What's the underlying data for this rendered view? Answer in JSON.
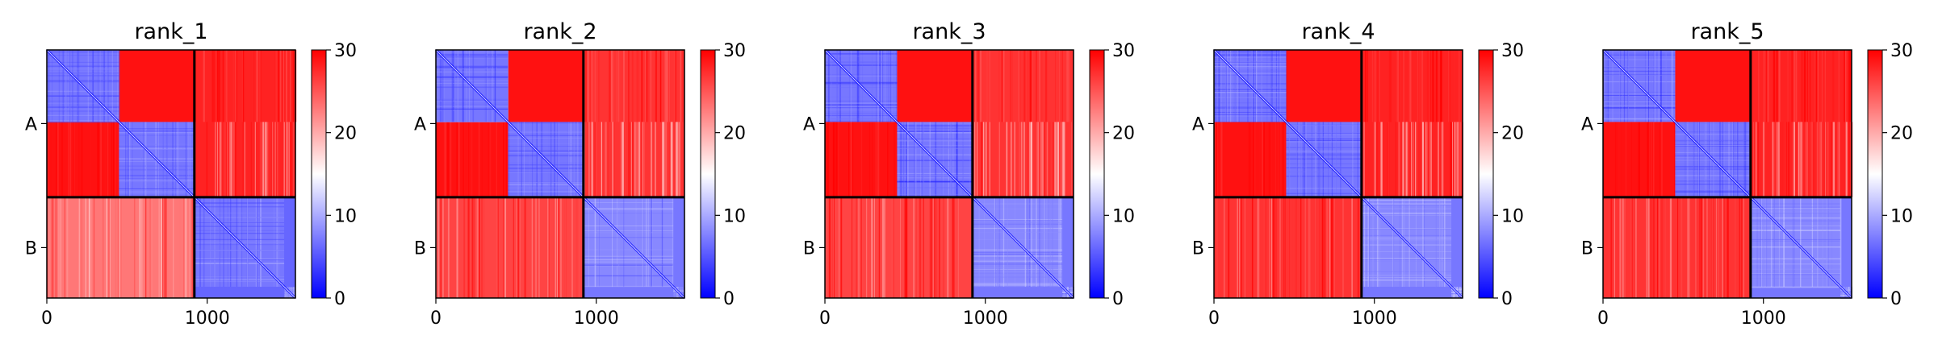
{
  "colormap": {
    "name": "bwr",
    "low_color": "#0000ff",
    "mid_color": "#ffffff",
    "high_color": "#ff0000",
    "vmin": 0,
    "vmax": 30,
    "ticks": [
      0,
      10,
      20,
      30
    ]
  },
  "chart_data": [
    {
      "type": "heatmap",
      "title": "rank_1",
      "xticks": [
        0,
        1000
      ],
      "xlim": [
        0,
        1550
      ],
      "block_boundary": 920,
      "groups": [
        "A",
        "B"
      ],
      "sub_boundaries": [
        450,
        920,
        1480,
        1550
      ],
      "blocks": {
        "AA_diag": 4,
        "AA_off": 29,
        "AB": 28,
        "BA": 23,
        "BB": 6
      }
    },
    {
      "type": "heatmap",
      "title": "rank_2",
      "xticks": [
        0,
        1000
      ],
      "xlim": [
        0,
        1550
      ],
      "block_boundary": 920,
      "groups": [
        "A",
        "B"
      ],
      "sub_boundaries": [
        450,
        920,
        1480,
        1550
      ],
      "blocks": {
        "AA_diag": 4,
        "AA_off": 29,
        "AB": 27,
        "BA": 26,
        "BB": 7
      }
    },
    {
      "type": "heatmap",
      "title": "rank_3",
      "xticks": [
        0,
        1000
      ],
      "xlim": [
        0,
        1550
      ],
      "block_boundary": 920,
      "groups": [
        "A",
        "B"
      ],
      "sub_boundaries": [
        450,
        920,
        1480,
        1550
      ],
      "blocks": {
        "AA_diag": 4,
        "AA_off": 29,
        "AB": 27,
        "BA": 26,
        "BB": 7
      }
    },
    {
      "type": "heatmap",
      "title": "rank_4",
      "xticks": [
        0,
        1000
      ],
      "xlim": [
        0,
        1550
      ],
      "block_boundary": 920,
      "groups": [
        "A",
        "B"
      ],
      "sub_boundaries": [
        450,
        920,
        1480,
        1550
      ],
      "blocks": {
        "AA_diag": 4,
        "AA_off": 29,
        "AB": 28,
        "BA": 27,
        "BB": 7
      }
    },
    {
      "type": "heatmap",
      "title": "rank_5",
      "xticks": [
        0,
        1000
      ],
      "xlim": [
        0,
        1550
      ],
      "block_boundary": 920,
      "groups": [
        "A",
        "B"
      ],
      "sub_boundaries": [
        450,
        920,
        1480,
        1550
      ],
      "blocks": {
        "AA_diag": 4,
        "AA_off": 29,
        "AB": 28,
        "BA": 27,
        "BB": 7
      }
    }
  ]
}
